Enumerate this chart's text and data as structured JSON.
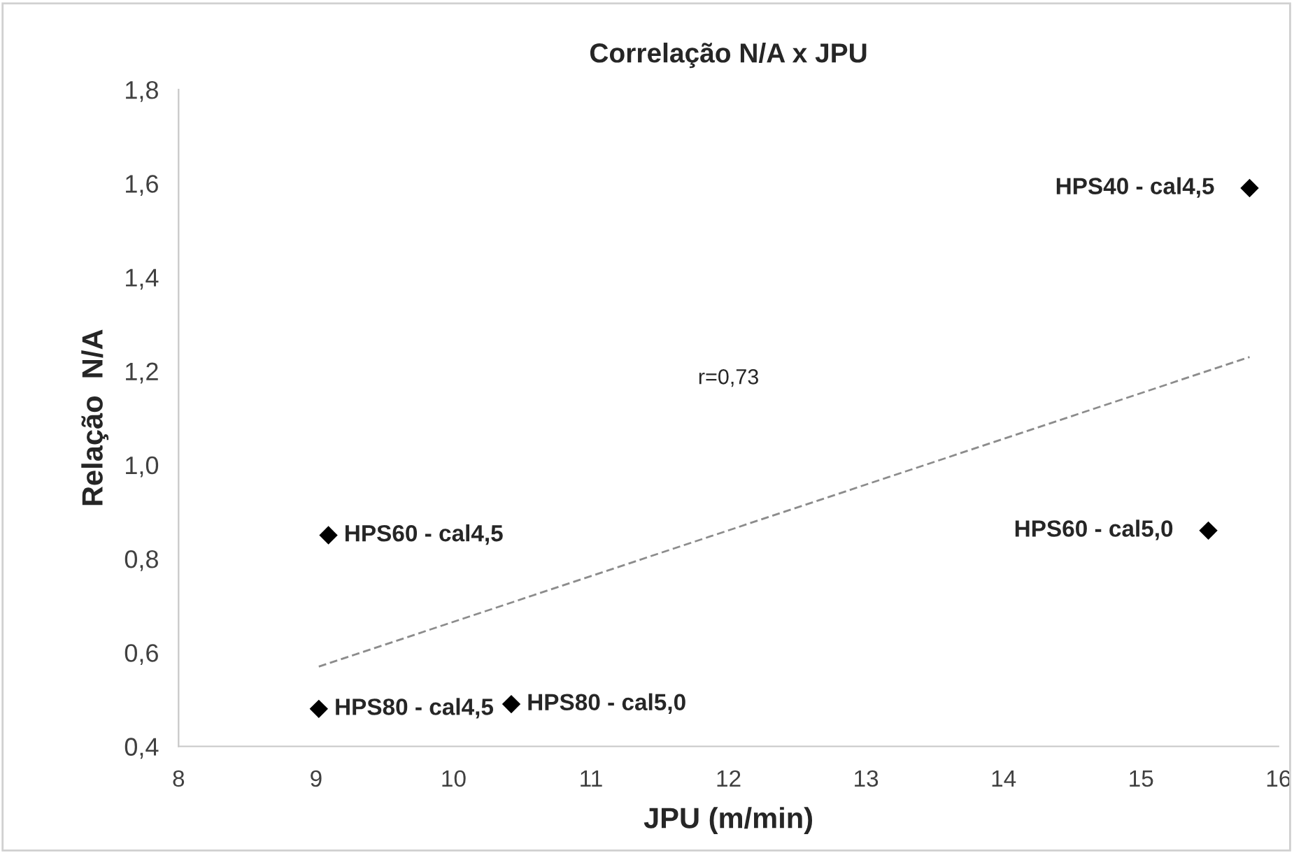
{
  "chart_data": {
    "type": "scatter",
    "title": "Correlação N/A x JPU",
    "xlabel": "JPU (m/min)",
    "ylabel": "Relação  N/A",
    "x": [
      9.09,
      9.02,
      10.42,
      15.49,
      15.79
    ],
    "marker": "diamond",
    "grid": false,
    "series": [
      {
        "color": "#000000",
        "values": [
          0.85,
          0.48,
          0.49,
          0.86,
          1.59
        ]
      },
      {
        "type": "line",
        "color": "#8c8c8c",
        "line_style": "dashed",
        "marker": "none",
        "x": [
          9.02,
          15.79
        ],
        "values": [
          0.57,
          1.23
        ]
      }
    ],
    "annotations": [
      {
        "text": "HPS60 - cal4,5",
        "x": 9.09,
        "y": 0.85
      },
      {
        "text": "HPS80 - cal4,5",
        "x": 9.02,
        "y": 0.48
      },
      {
        "text": "HPS80 - cal5,0",
        "x": 10.42,
        "y": 0.49
      },
      {
        "text": "HPS60 - cal5,0",
        "x": 15.49,
        "y": 0.86
      },
      {
        "text": "HPS40 - cal4,5",
        "x": 15.79,
        "y": 1.59
      },
      "r=0,73"
    ],
    "xlim": [
      8,
      16
    ],
    "xticks": [
      8,
      9,
      10,
      11,
      12,
      13,
      14,
      15,
      16
    ],
    "ylim": [
      0.4,
      1.8
    ],
    "yticks": [
      {
        "value": 0.4,
        "label": "0,4"
      },
      {
        "value": 0.6,
        "label": "0,6"
      },
      {
        "value": 0.8,
        "label": "0,8"
      },
      {
        "value": 1.0,
        "label": "1,0"
      },
      {
        "value": 1.2,
        "label": "1,2"
      },
      {
        "value": 1.4,
        "label": "1,4"
      },
      {
        "value": 1.6,
        "label": "1,6"
      },
      {
        "value": 1.8,
        "label": "1,8"
      }
    ]
  }
}
